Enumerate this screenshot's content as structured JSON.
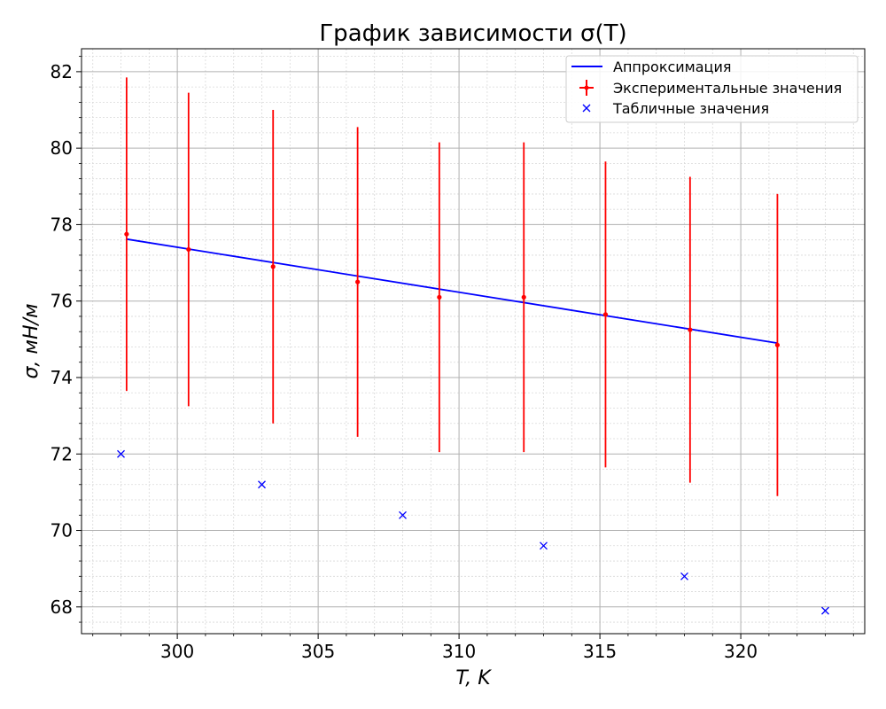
{
  "chart_data": {
    "type": "scatter",
    "title": "График зависимости σ(T)",
    "xlabel": "T, K",
    "ylabel": "σ, мН/м",
    "xlim": [
      296.6,
      324.4
    ],
    "ylim": [
      67.3,
      82.6
    ],
    "xticks": [
      300,
      305,
      310,
      315,
      320
    ],
    "yticks": [
      68,
      70,
      72,
      74,
      76,
      78,
      80,
      82
    ],
    "grid": true,
    "minor_grid": true,
    "legend_position": "top-right",
    "series": [
      {
        "name": "Аппроксимация",
        "kind": "line",
        "color": "#0000ff",
        "x": [
          298.2,
          321.3
        ],
        "y": [
          77.62,
          74.9
        ]
      },
      {
        "name": "Экспериментальные значения",
        "kind": "errorbar",
        "color": "#ff0000",
        "x": [
          298.2,
          300.4,
          303.4,
          306.4,
          309.3,
          312.3,
          315.2,
          318.2,
          321.3
        ],
        "y": [
          77.75,
          77.35,
          76.9,
          76.5,
          76.1,
          76.1,
          75.65,
          75.25,
          74.85
        ],
        "yerr": [
          4.1,
          4.1,
          4.1,
          4.05,
          4.05,
          4.05,
          4.0,
          4.0,
          3.95
        ]
      },
      {
        "name": "Табличные значения",
        "kind": "marker",
        "color": "#0000ff",
        "x": [
          298,
          303,
          308,
          313,
          318,
          323
        ],
        "y": [
          72.0,
          71.2,
          70.4,
          69.6,
          68.8,
          67.9
        ]
      }
    ]
  }
}
